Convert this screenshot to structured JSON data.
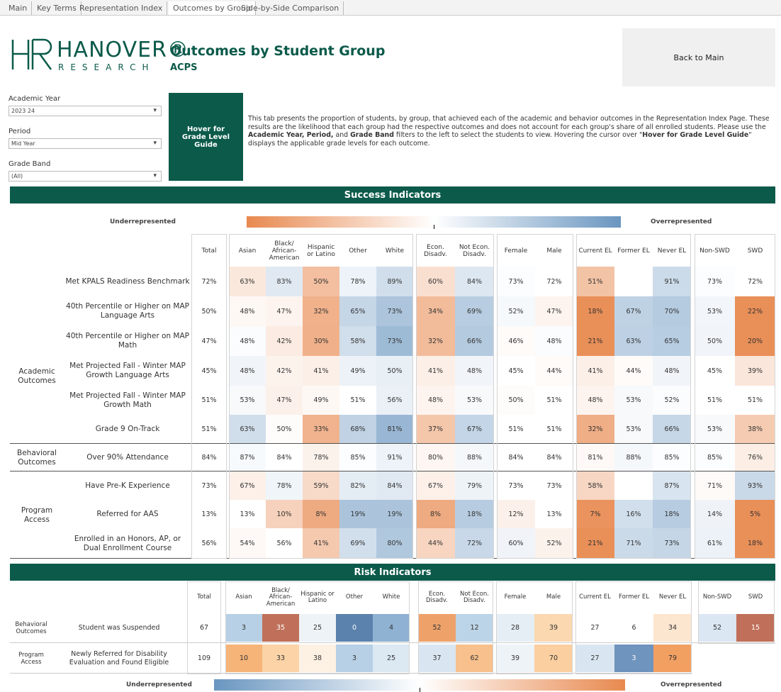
{
  "tabs": [
    "Main",
    "Key Terms",
    "Representation Index",
    "Outcomes by Group",
    "Side-by-Side Comparison"
  ],
  "active_tab": 3,
  "logo": {
    "name": "HANOVER®",
    "sub": "RESEARCH"
  },
  "title": "Outcomes by Student Group",
  "subtitle": "ACPS",
  "back_button": "Back to Main",
  "filters": [
    {
      "label": "Academic Year",
      "value": "2023 24"
    },
    {
      "label": "Period",
      "value": "Mid Year"
    },
    {
      "label": "Grade Band",
      "value": "(All)"
    }
  ],
  "guide_button": "Hover for Grade Level Guide",
  "description": [
    {
      "text": "This tab presents the proportion of students, by group, that achieved each of the academic and behavior outcomes in the Representation Index Page. These results are the likelihood that each group had the respective outcomes and does not account for each group's share of all enrolled students. Please use the ",
      "bold": false
    },
    {
      "text": "Academic Year, Period,",
      "bold": true
    },
    {
      "text": " and ",
      "bold": false
    },
    {
      "text": "Grade Band",
      "bold": true
    },
    {
      "text": " filters to the left to select the students to view. Hovering the cursor over \"",
      "bold": false
    },
    {
      "text": "Hover for Grade Level Guide",
      "bold": true
    },
    {
      "text": "\" displays the applicable grade levels for each outcome.",
      "bold": false
    }
  ],
  "success": {
    "title": "Success Indicators",
    "legend_low": "Underrepresented",
    "legend_high": "Overrepresented",
    "columns": [
      "Total",
      "Asian",
      "Black/ African- American",
      "Hispanic or Latino",
      "Other",
      "White",
      "Econ. Disadv.",
      "Not Econ. Disadv.",
      "Female",
      "Male",
      "Current EL",
      "Former EL",
      "Never EL",
      "Non-SWD",
      "SWD"
    ],
    "groups": [
      {
        "label": "Academic Outcomes",
        "rows": [
          {
            "label": "Met KPALS Readiness Benchmark",
            "values": [
              "72%",
              "63%",
              "83%",
              "50%",
              "78%",
              "89%",
              "60%",
              "84%",
              "73%",
              "72%",
              "51%",
              null,
              "91%",
              "73%",
              "72%"
            ]
          },
          {
            "label": "40th Percentile or Higher on MAP Language Arts",
            "values": [
              "50%",
              "48%",
              "47%",
              "32%",
              "65%",
              "73%",
              "34%",
              "69%",
              "52%",
              "47%",
              "18%",
              "67%",
              "70%",
              "53%",
              "22%"
            ]
          },
          {
            "label": "40th Percentile or Higher on MAP Math",
            "values": [
              "47%",
              "48%",
              "42%",
              "30%",
              "58%",
              "73%",
              "32%",
              "66%",
              "46%",
              "48%",
              "21%",
              "63%",
              "65%",
              "50%",
              "20%"
            ]
          },
          {
            "label": "Met Projected Fall - Winter MAP Growth Language Arts",
            "values": [
              "45%",
              "48%",
              "42%",
              "41%",
              "49%",
              "50%",
              "41%",
              "48%",
              "45%",
              "44%",
              "41%",
              "44%",
              "48%",
              "45%",
              "39%"
            ]
          },
          {
            "label": "Met Projected Fall - Winter MAP Growth Math",
            "values": [
              "51%",
              "53%",
              "47%",
              "49%",
              "51%",
              "56%",
              "48%",
              "53%",
              "50%",
              "51%",
              "48%",
              "53%",
              "52%",
              "51%",
              "51%"
            ]
          },
          {
            "label": "Grade 9 On-Track",
            "values": [
              "51%",
              "63%",
              "50%",
              "33%",
              "68%",
              "81%",
              "37%",
              "67%",
              "51%",
              "51%",
              "32%",
              "53%",
              "66%",
              "53%",
              "38%"
            ]
          }
        ]
      },
      {
        "label": "Behavioral Outcomes",
        "rows": [
          {
            "label": "Over 90% Attendance",
            "values": [
              "84%",
              "87%",
              "84%",
              "78%",
              "85%",
              "91%",
              "80%",
              "88%",
              "84%",
              "84%",
              "81%",
              "88%",
              "85%",
              "85%",
              "76%"
            ]
          }
        ]
      },
      {
        "label": "Program Access",
        "rows": [
          {
            "label": "Have Pre-K Experience",
            "values": [
              "73%",
              "67%",
              "78%",
              "59%",
              "82%",
              "84%",
              "67%",
              "79%",
              "73%",
              "73%",
              "58%",
              null,
              "87%",
              "71%",
              "93%"
            ]
          },
          {
            "label": "Referred for AAS",
            "values": [
              "13%",
              "13%",
              "10%",
              "8%",
              "19%",
              "19%",
              "8%",
              "18%",
              "12%",
              "13%",
              "7%",
              "16%",
              "18%",
              "14%",
              "5%"
            ]
          },
          {
            "label": "Enrolled in an Honors, AP, or Dual Enrollment Course",
            "values": [
              "56%",
              "54%",
              "56%",
              "41%",
              "69%",
              "80%",
              "44%",
              "72%",
              "60%",
              "52%",
              "21%",
              "71%",
              "73%",
              "61%",
              "18%"
            ]
          }
        ]
      }
    ]
  },
  "risk": {
    "title": "Risk Indicators",
    "legend_low": "Underrepresented",
    "legend_high": "Overrepresented",
    "columns": [
      "Total",
      "Asian",
      "Black/ African- American",
      "Hispanic or Latino",
      "Other",
      "White",
      "Econ. Disadv.",
      "Not Econ. Disadv.",
      "Female",
      "Male",
      "Current EL",
      "Former EL",
      "Never EL",
      "Non-SWD",
      "SWD"
    ],
    "rows": [
      {
        "group": "Behavioral Outcomes",
        "label": "Student was Suspended",
        "values": [
          67,
          3,
          35,
          25,
          0,
          4,
          52,
          12,
          28,
          39,
          27,
          6,
          34,
          52,
          15
        ],
        "colors": [
          "#ffffff",
          "#b7d0e5",
          "#c0705a",
          "#eef3f8",
          "#5b82ad",
          "#8fb2d3",
          "#eea26a",
          "#bcd4e7",
          "#e6eef5",
          "#fbd8b0",
          "#ffffff",
          "#ffffff",
          "#fde6cf",
          "#dbe7f2",
          "#c0705a"
        ]
      },
      {
        "group": "Program Access",
        "label": "Newly Referred for Disability Evaluation and Found Eligible",
        "values": [
          109,
          10,
          33,
          38,
          3,
          25,
          37,
          62,
          39,
          70,
          27,
          3,
          79,
          null,
          null
        ],
        "colors": [
          "#ffffff",
          "#f6b479",
          "#fbd3a7",
          "#fdf1e3",
          "#b7d0e5",
          "#dce8f2",
          "#d9e6f1",
          "#f7c08c",
          "#eef3f8",
          "#fbcf9f",
          "#d9e6f1",
          "#6f94bd",
          "#f2a062",
          null,
          null
        ]
      }
    ]
  }
}
